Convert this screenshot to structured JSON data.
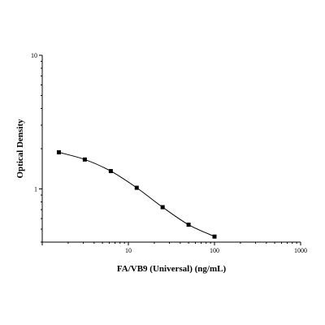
{
  "chart_data": {
    "type": "scatter",
    "title": "",
    "xlabel": "FA/VB9 (Universal) (ng/mL)",
    "ylabel": "Optical Density",
    "xscale": "log",
    "yscale": "log",
    "xlim": [
      1,
      1000
    ],
    "ylim": [
      0.4,
      10
    ],
    "x_ticks": [
      "10",
      "100",
      "1000"
    ],
    "y_ticks": [
      "1",
      "10"
    ],
    "grid": false,
    "legend": "none",
    "fit_curve": true,
    "series": [
      {
        "points": [
          {
            "x": 1.56,
            "y": 1.88
          },
          {
            "x": 3.12,
            "y": 1.66
          },
          {
            "x": 6.25,
            "y": 1.36
          },
          {
            "x": 12.5,
            "y": 1.02
          },
          {
            "x": 25,
            "y": 0.73
          },
          {
            "x": 50,
            "y": 0.54
          },
          {
            "x": 100,
            "y": 0.44
          }
        ]
      }
    ]
  }
}
